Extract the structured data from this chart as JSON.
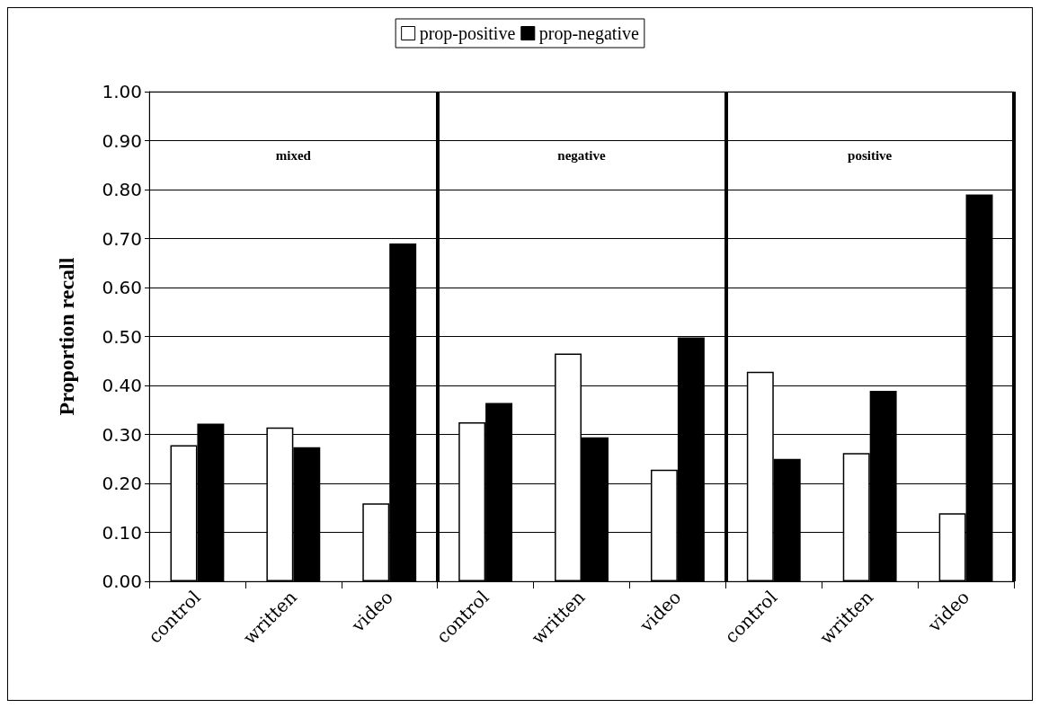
{
  "chart_data": {
    "type": "bar",
    "ylabel": "Proportion recall",
    "categories": [
      "control",
      "written",
      "video",
      "control",
      "written",
      "video",
      "control",
      "written",
      "video"
    ],
    "series": [
      {
        "name": "prop-positive",
        "color": "#ffffff",
        "values": [
          0.278,
          0.314,
          0.159,
          0.325,
          0.465,
          0.228,
          0.428,
          0.262,
          0.139
        ]
      },
      {
        "name": "prop-negative",
        "color": "#000000",
        "values": [
          0.322,
          0.274,
          0.69,
          0.364,
          0.294,
          0.498,
          0.25,
          0.389,
          0.79
        ]
      }
    ],
    "ylim": [
      0,
      1
    ],
    "yticks": [
      {
        "value": 0,
        "label": "0.00"
      },
      {
        "value": 0.1,
        "label": "0.10"
      },
      {
        "value": 0.2,
        "label": "0.20"
      },
      {
        "value": 0.3,
        "label": "0.30"
      },
      {
        "value": 0.4,
        "label": "0.40"
      },
      {
        "value": 0.5,
        "label": "0.50"
      },
      {
        "value": 0.6,
        "label": "0.60"
      },
      {
        "value": 0.7,
        "label": "0.70"
      },
      {
        "value": 0.8,
        "label": "0.80"
      },
      {
        "value": 0.9,
        "label": "0.90"
      },
      {
        "value": 1,
        "label": "1.00"
      }
    ],
    "grid": "y",
    "legend": "top",
    "annotations": [
      "mixed",
      "negative",
      "positive"
    ]
  }
}
